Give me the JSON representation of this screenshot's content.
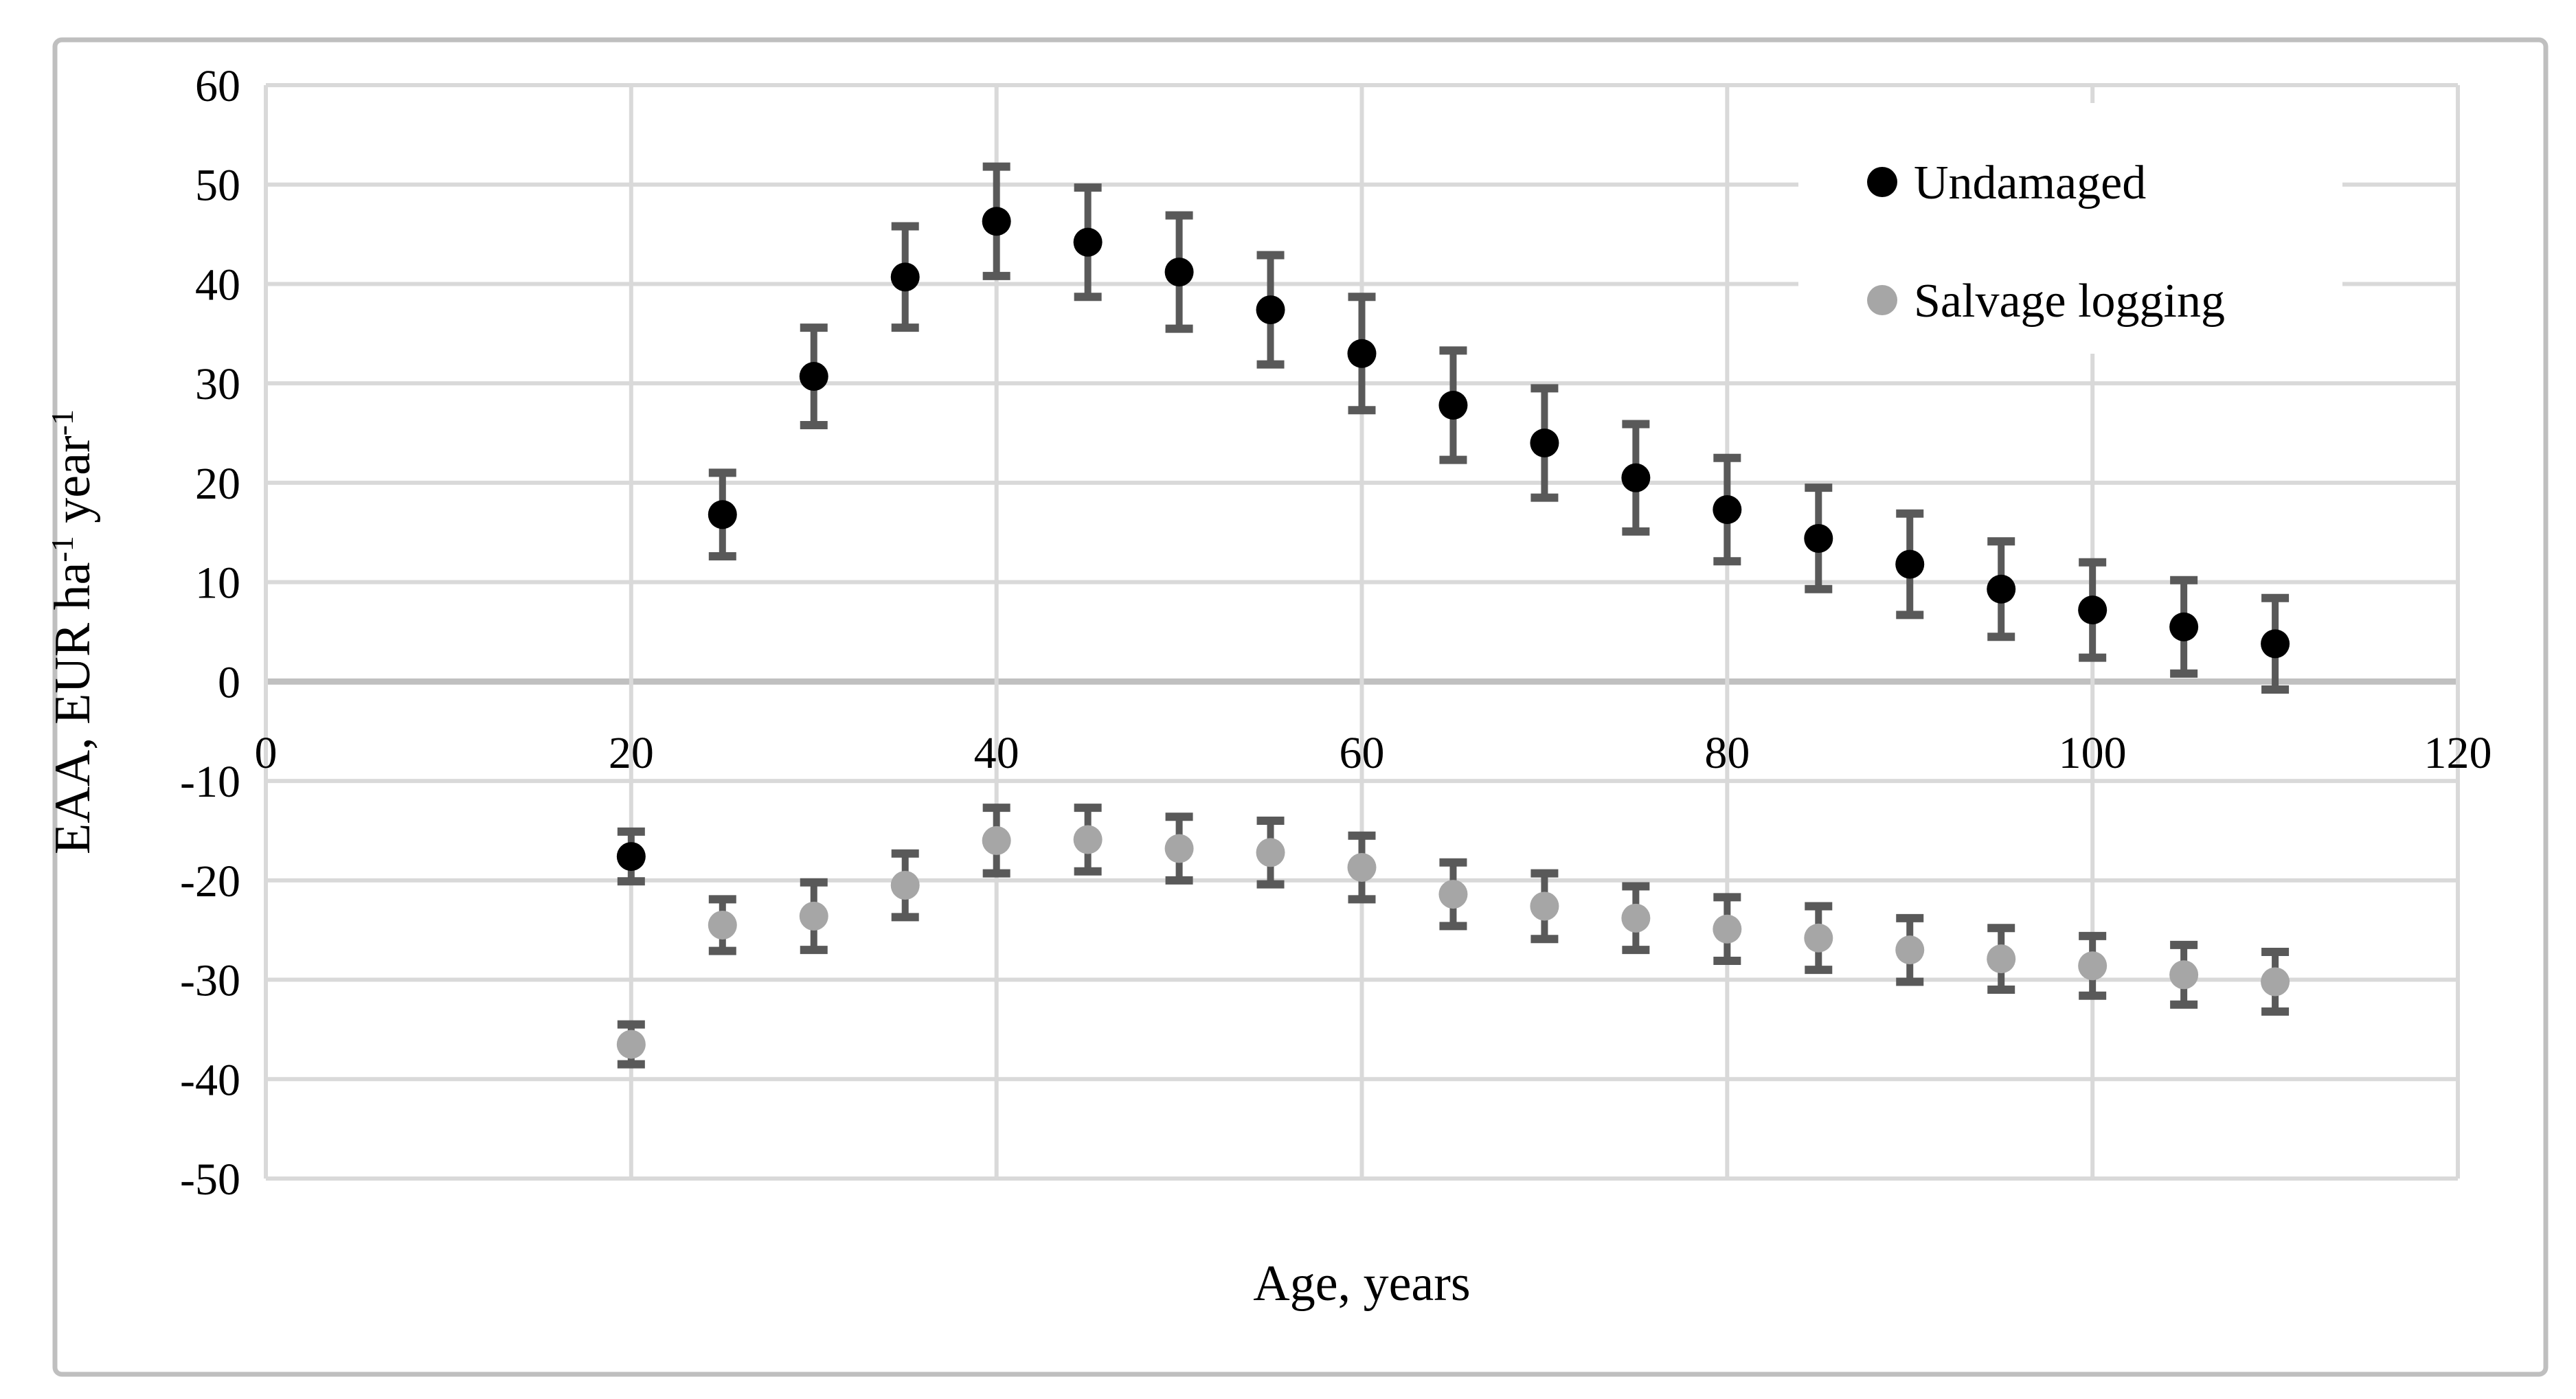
{
  "chart_data": {
    "type": "scatter",
    "title": "",
    "xlabel": "Age, years",
    "ylabel": "EAA, EUR ha⁻¹ year⁻¹",
    "ylabel_rich": [
      {
        "t": "EAA, EUR ha"
      },
      {
        "t": "-1",
        "sup": true
      },
      {
        "t": " year"
      },
      {
        "t": "-1",
        "sup": true
      }
    ],
    "xlim": [
      0,
      120
    ],
    "ylim": [
      -50,
      60
    ],
    "xticks": [
      0,
      20,
      40,
      60,
      80,
      100,
      120
    ],
    "yticks": [
      60,
      50,
      40,
      30,
      20,
      10,
      0,
      -10,
      -20,
      -30,
      -40,
      -50
    ],
    "grid": true,
    "legend_position": "top-right",
    "x": [
      20,
      25,
      30,
      35,
      40,
      45,
      50,
      55,
      60,
      65,
      70,
      75,
      80,
      85,
      90,
      95,
      100,
      105,
      110
    ],
    "series": [
      {
        "name": "Undamaged",
        "color": "#000000",
        "values": [
          -17.6,
          16.8,
          30.7,
          40.7,
          46.3,
          44.2,
          41.2,
          37.4,
          33.0,
          27.8,
          24.0,
          20.5,
          17.3,
          14.4,
          11.8,
          9.3,
          7.2,
          5.5,
          3.8
        ],
        "errors": [
          2.5,
          4.2,
          4.9,
          5.1,
          5.5,
          5.5,
          5.7,
          5.5,
          5.7,
          5.5,
          5.5,
          5.4,
          5.2,
          5.1,
          5.1,
          4.8,
          4.8,
          4.7,
          4.6
        ]
      },
      {
        "name": "Salvage logging",
        "color": "#a6a6a6",
        "values": [
          -36.5,
          -24.5,
          -23.6,
          -20.5,
          -16.0,
          -15.9,
          -16.8,
          -17.2,
          -18.7,
          -21.4,
          -22.6,
          -23.8,
          -24.9,
          -25.8,
          -27.0,
          -27.9,
          -28.6,
          -29.5,
          -30.2
        ],
        "errors": [
          2.0,
          2.6,
          3.4,
          3.2,
          3.3,
          3.2,
          3.2,
          3.2,
          3.2,
          3.2,
          3.3,
          3.2,
          3.2,
          3.2,
          3.2,
          3.1,
          3.0,
          3.0,
          3.0
        ]
      }
    ],
    "colors": {
      "errorbar": "#595959",
      "gridline": "#d9d9d9",
      "zeroline": "#c0c0c0",
      "frame": "#bfbfbf",
      "tick_text": "#000000",
      "background": "#ffffff"
    }
  }
}
